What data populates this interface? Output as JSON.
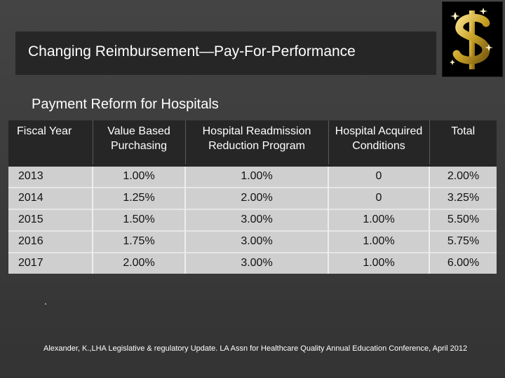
{
  "slide": {
    "title": "Changing Reimbursement—Pay-For-Performance",
    "subtitle": "Payment Reform for Hospitals",
    "logo_icon": "dollar-sign-sparkle-icon",
    "dot": ".",
    "citation": "Alexander, K.,LHA Legislative & regulatory Update. LA Assn for Healthcare Quality Annual Education Conference, April 2012"
  },
  "table": {
    "headers": [
      "Fiscal Year",
      "Value Based Purchasing",
      "Hospital Readmission Reduction Program",
      "Hospital Acquired Conditions",
      "Total"
    ],
    "rows": [
      [
        "2013",
        "1.00%",
        "1.00%",
        "0",
        "2.00%"
      ],
      [
        "2014",
        "1.25%",
        "2.00%",
        "0",
        "3.25%"
      ],
      [
        "2015",
        "1.50%",
        "3.00%",
        "1.00%",
        "5.50%"
      ],
      [
        "2016",
        "1.75%",
        "3.00%",
        "1.00%",
        "5.75%"
      ],
      [
        "2017",
        "2.00%",
        "3.00%",
        "1.00%",
        "6.00%"
      ]
    ]
  },
  "colors": {
    "background": "#3b3b3b",
    "title_band": "#262626",
    "table_header": "#262626",
    "table_cell": "#cfcfcf",
    "logo_gold": "#c9a227"
  }
}
